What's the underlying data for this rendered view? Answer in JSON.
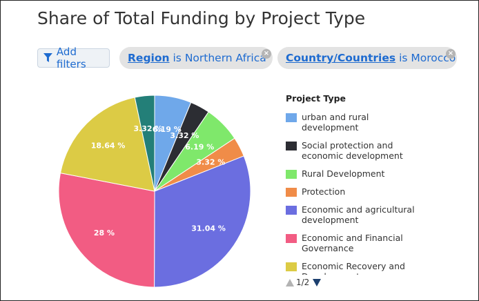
{
  "title": "Share of Total Funding by Project Type",
  "filters": {
    "add_label": "Add filters",
    "chips": [
      {
        "key": "Region",
        "connector": "is",
        "value": "Northern Africa"
      },
      {
        "key": "Country/Countries",
        "connector": "is",
        "value": "Morocco"
      }
    ],
    "close_glyph": "×"
  },
  "legend": {
    "title": "Project Type",
    "page": "1/2"
  },
  "chart_data": {
    "type": "pie",
    "title": "Share of Total Funding by Project Type",
    "legend_position": "right",
    "slices": [
      {
        "label": "urban and rural development",
        "value": 6.19,
        "display": "6.19 %",
        "color": "#6fa8ea"
      },
      {
        "label": "Social protection and economic development",
        "value": 3.32,
        "display": "3.32 %",
        "color": "#2c2d33"
      },
      {
        "label": "Rural Development",
        "value": 6.19,
        "display": "6.19 %",
        "color": "#7fe86b"
      },
      {
        "label": "Protection",
        "value": 3.32,
        "display": "3.32 %",
        "color": "#f08c48"
      },
      {
        "label": "Economic and agricultural development",
        "value": 31.04,
        "display": "31.04 %",
        "color": "#6b6ee0"
      },
      {
        "label": "Economic and Financial Governance",
        "value": 28,
        "display": "28 %",
        "color": "#f25c83"
      },
      {
        "label": "Economic Recovery and Development",
        "value": 18.64,
        "display": "18.64 %",
        "color": "#dccb45"
      },
      {
        "label": "",
        "value": 3.32,
        "display": "3.32 %",
        "color": "#237f78"
      }
    ]
  }
}
